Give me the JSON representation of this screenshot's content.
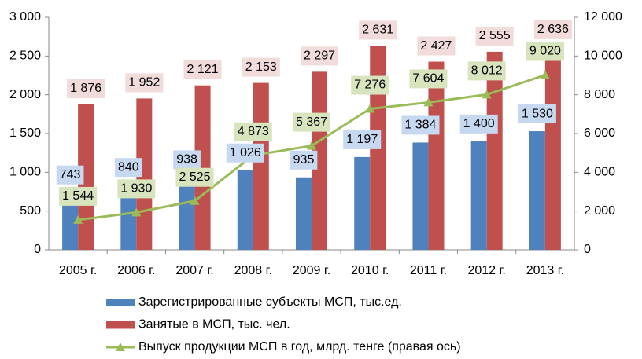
{
  "chart_data": {
    "type": "bar",
    "categories": [
      "2005 г.",
      "2006 г.",
      "2007 г.",
      "2008 г.",
      "2009 г.",
      "2010 г.",
      "2011 г.",
      "2012 г.",
      "2013 г."
    ],
    "series": [
      {
        "name": "Зарегистрированные субъекты МСП, тыс.ед.",
        "type": "bar",
        "color": "#4f81bd",
        "label_color": "#c6d9f1",
        "values": [
          743,
          840,
          938,
          1026,
          935,
          1197,
          1384,
          1400,
          1530
        ],
        "value_labels": [
          "743",
          "840",
          "938",
          "1 026",
          "935",
          "1 197",
          "1 384",
          "1 400",
          "1 530"
        ]
      },
      {
        "name": "Занятые в МСП, тыс. чел.",
        "type": "bar",
        "color": "#c0504d",
        "label_color": "#f2dcdb",
        "values": [
          1876,
          1952,
          2121,
          2153,
          2297,
          2631,
          2427,
          2555,
          2636
        ],
        "value_labels": [
          "1 876",
          "1 952",
          "2 121",
          "2 153",
          "2 297",
          "2 631",
          "2 427",
          "2 555",
          "2 636"
        ]
      },
      {
        "name": "Выпуск продукции МСП в год, млрд. тенге (правая ось)",
        "type": "line",
        "axis": "y2",
        "color": "#9bbb59",
        "label_color": "#d7e4bd",
        "values": [
          1544,
          1930,
          2525,
          4873,
          5367,
          7276,
          7604,
          8012,
          9020
        ],
        "value_labels": [
          "1 544",
          "1 930",
          "2 525",
          "4 873",
          "5 367",
          "7 276",
          "7 604",
          "8 012",
          "9 020"
        ]
      }
    ],
    "ylim": [
      0,
      3000
    ],
    "yticks": [
      0,
      500,
      {
        "value": 1000,
        "label": "1 000"
      },
      {
        "value": 1500,
        "label": "1 500"
      },
      {
        "value": 2000,
        "label": "2 000"
      },
      {
        "value": 2500,
        "label": "2 500"
      },
      {
        "value": 3000,
        "label": "3 000"
      }
    ],
    "y2lim": [
      0,
      12000
    ],
    "y2ticks": [
      0,
      {
        "value": 2000,
        "label": "2 000"
      },
      {
        "value": 4000,
        "label": "4 000"
      },
      {
        "value": 6000,
        "label": "6 000"
      },
      {
        "value": 8000,
        "label": "8 000"
      },
      {
        "value": 10000,
        "label": "10 000"
      },
      {
        "value": 12000,
        "label": "12 000"
      }
    ],
    "grid": false,
    "legend": "bottom"
  }
}
